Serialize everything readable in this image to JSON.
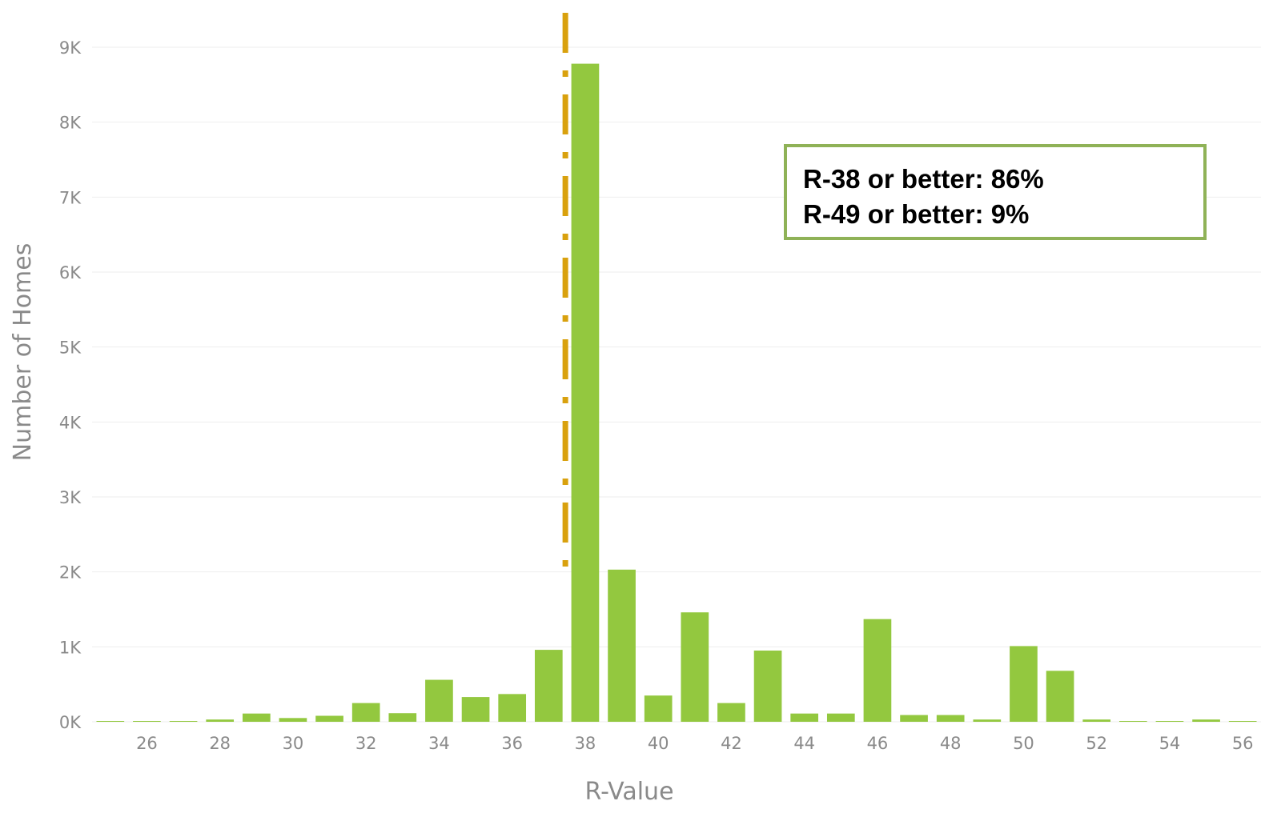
{
  "chart_data": {
    "type": "bar",
    "xlabel": "R-Value",
    "ylabel": "Number of Homes",
    "x": [
      25,
      26,
      27,
      28,
      29,
      30,
      31,
      32,
      33,
      34,
      35,
      36,
      37,
      38,
      39,
      40,
      41,
      42,
      43,
      44,
      45,
      46,
      47,
      48,
      49,
      50,
      51,
      52,
      53,
      54,
      55,
      56
    ],
    "values": [
      8,
      10,
      10,
      30,
      110,
      50,
      80,
      250,
      115,
      560,
      330,
      370,
      960,
      8780,
      2030,
      350,
      1460,
      250,
      950,
      110,
      110,
      1370,
      90,
      90,
      30,
      1010,
      680,
      30,
      10,
      0,
      30,
      10
    ],
    "x_ticks": [
      "26",
      "28",
      "30",
      "32",
      "34",
      "36",
      "38",
      "40",
      "42",
      "44",
      "46",
      "48",
      "50",
      "52",
      "54",
      "56"
    ],
    "y_ticks": [
      "0K",
      "1K",
      "2K",
      "3K",
      "4K",
      "5K",
      "6K",
      "7K",
      "8K",
      "9K"
    ],
    "ylim": [
      0,
      9000
    ],
    "xlim": [
      24.5,
      56.5
    ],
    "grid": true,
    "reference_line": {
      "x": 37.5,
      "color": "#d9a10e",
      "style": "dash-dot"
    },
    "annotations": [
      "R-38 or better: 86%",
      "R-49 or better: 9%"
    ],
    "colors": {
      "bar": "#93c83f",
      "grid": "#eeeeee",
      "reference": "#d9a10e",
      "box_border": "#8fb257",
      "text": "#8a8a8a"
    }
  }
}
